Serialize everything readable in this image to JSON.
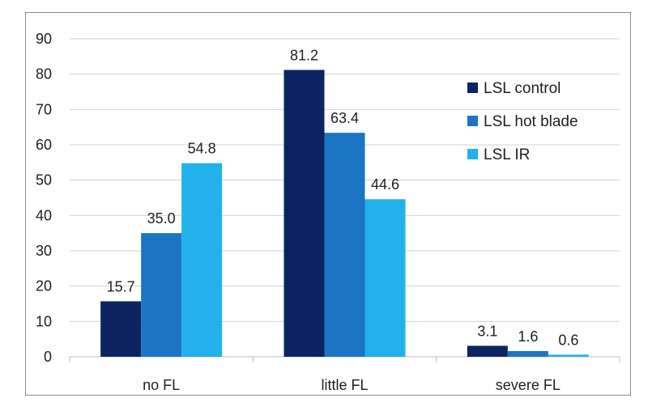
{
  "chart_data": {
    "type": "bar",
    "categories": [
      "no FL",
      "little FL",
      "severe FL"
    ],
    "series": [
      {
        "name": "LSL control",
        "values": [
          15.7,
          81.2,
          3.1
        ],
        "labels": [
          "15.7",
          "81.2",
          "3.1"
        ],
        "color": "#0c2461"
      },
      {
        "name": "LSL hot blade",
        "values": [
          35.0,
          63.4,
          1.6
        ],
        "labels": [
          "35.0",
          "63.4",
          "1.6"
        ],
        "color": "#1b75c4"
      },
      {
        "name": "LSL IR",
        "values": [
          54.8,
          44.6,
          0.6
        ],
        "labels": [
          "54.8",
          "44.6",
          "0.6"
        ],
        "color": "#22b1ea"
      }
    ],
    "ylim": [
      0,
      90
    ],
    "yticks": [
      0,
      10,
      20,
      30,
      40,
      50,
      60,
      70,
      80,
      90
    ],
    "grid": true,
    "legend": "right",
    "title": "",
    "xlabel": "",
    "ylabel": ""
  }
}
